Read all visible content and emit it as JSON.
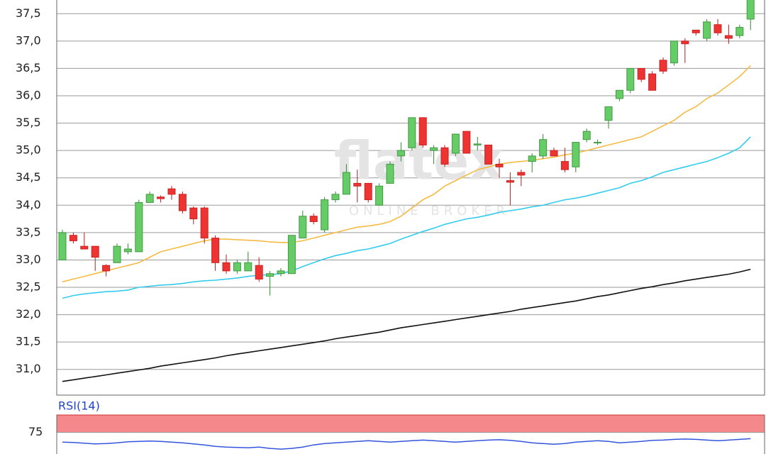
{
  "chart_data": {
    "type": "candlestick",
    "watermark": "flatex",
    "watermark_sub": "ONLINE BROKER",
    "ylim": [
      30.53,
      37.75
    ],
    "yticks": [
      {
        "value": 31,
        "label": "31,0"
      },
      {
        "value": 31.5,
        "label": "31,5"
      },
      {
        "value": 32,
        "label": "32,0"
      },
      {
        "value": 32.5,
        "label": "32,5"
      },
      {
        "value": 33,
        "label": "33,0"
      },
      {
        "value": 33.5,
        "label": "33,5"
      },
      {
        "value": 34,
        "label": "34,0"
      },
      {
        "value": 34.5,
        "label": "34,5"
      },
      {
        "value": 35,
        "label": "35,0"
      },
      {
        "value": 35.5,
        "label": "35,5"
      },
      {
        "value": 36,
        "label": "36,0"
      },
      {
        "value": 36.5,
        "label": "36,5"
      },
      {
        "value": 37,
        "label": "37,0"
      },
      {
        "value": 37.5,
        "label": "37,5"
      }
    ],
    "grid": true,
    "up_color": "#66cc66",
    "down_color": "#ee3333",
    "open": [
      33.0,
      33.45,
      33.25,
      33.25,
      32.9,
      32.95,
      33.15,
      33.15,
      34.05,
      34.15,
      34.3,
      34.2,
      33.95,
      33.95,
      33.4,
      32.95,
      32.8,
      32.8,
      32.9,
      32.7,
      32.75,
      32.75,
      33.4,
      33.8,
      33.55,
      34.1,
      34.2,
      34.4,
      34.4,
      34.0,
      34.4,
      34.9,
      35.05,
      35.6,
      35.0,
      35.05,
      34.95,
      35.35,
      35.1,
      35.1,
      34.75,
      34.45,
      34.6,
      34.8,
      34.9,
      35.0,
      34.8,
      34.7,
      35.2,
      35.15,
      35.55,
      35.95,
      36.1,
      36.5,
      36.4,
      36.65,
      36.6,
      37.0,
      37.2,
      37.05,
      37.3,
      37.1,
      37.1,
      37.4
    ],
    "high": [
      33.55,
      33.5,
      33.5,
      33.25,
      32.92,
      33.3,
      33.3,
      34.1,
      34.25,
      34.18,
      34.35,
      34.25,
      33.98,
      33.98,
      33.45,
      33.1,
      33.0,
      33.15,
      33.05,
      32.8,
      32.85,
      33.45,
      33.9,
      33.85,
      34.15,
      34.25,
      34.75,
      34.65,
      34.4,
      34.4,
      34.8,
      35.15,
      35.6,
      35.6,
      35.1,
      35.1,
      35.3,
      35.35,
      35.25,
      35.1,
      34.85,
      34.6,
      34.65,
      34.95,
      35.3,
      35.05,
      35.05,
      35.15,
      35.4,
      35.2,
      35.8,
      36.1,
      36.5,
      36.5,
      36.45,
      36.7,
      37.0,
      37.05,
      37.2,
      37.4,
      37.4,
      37.3,
      37.3,
      37.8
    ],
    "low": [
      33.0,
      33.3,
      33.2,
      32.8,
      32.7,
      32.95,
      33.1,
      33.15,
      34.05,
      34.05,
      34.1,
      33.85,
      33.65,
      33.3,
      32.8,
      32.75,
      32.75,
      32.8,
      32.6,
      32.35,
      32.7,
      32.75,
      33.4,
      33.65,
      33.5,
      34.05,
      34.2,
      34.05,
      34.05,
      34.0,
      34.4,
      34.8,
      35.0,
      35.05,
      34.75,
      34.7,
      34.9,
      34.95,
      35.0,
      34.75,
      34.5,
      34.0,
      34.35,
      34.6,
      34.85,
      34.9,
      34.6,
      34.6,
      35.15,
      35.1,
      35.4,
      35.9,
      36.05,
      36.25,
      36.1,
      36.4,
      36.55,
      36.6,
      37.1,
      37.0,
      37.1,
      36.95,
      37.05,
      37.2
    ],
    "close": [
      33.5,
      33.35,
      33.2,
      33.05,
      32.8,
      33.25,
      33.2,
      34.05,
      34.2,
      34.12,
      34.2,
      33.9,
      33.75,
      33.4,
      32.95,
      32.8,
      32.95,
      32.95,
      32.65,
      32.75,
      32.8,
      33.45,
      33.8,
      33.7,
      34.1,
      34.2,
      34.6,
      34.35,
      34.1,
      34.35,
      34.75,
      35.0,
      35.6,
      35.1,
      35.05,
      34.75,
      35.3,
      34.95,
      35.12,
      34.75,
      34.7,
      34.42,
      34.55,
      34.9,
      35.2,
      34.9,
      34.65,
      35.15,
      35.35,
      35.15,
      35.8,
      36.1,
      36.5,
      36.3,
      36.1,
      36.45,
      37.0,
      36.95,
      37.15,
      37.35,
      37.15,
      37.05,
      37.25,
      37.8
    ],
    "series": [
      {
        "color": "#f5bb44",
        "values": [
          32.6,
          32.65,
          32.7,
          32.75,
          32.8,
          32.85,
          32.9,
          32.95,
          33.05,
          33.15,
          33.2,
          33.25,
          33.3,
          33.35,
          33.38,
          33.38,
          33.37,
          33.36,
          33.35,
          33.33,
          33.32,
          33.32,
          33.35,
          33.4,
          33.45,
          33.5,
          33.55,
          33.6,
          33.62,
          33.65,
          33.7,
          33.8,
          33.95,
          34.1,
          34.2,
          34.35,
          34.45,
          34.55,
          34.65,
          34.7,
          34.75,
          34.78,
          34.8,
          34.82,
          34.85,
          34.88,
          34.92,
          34.95,
          35.0,
          35.05,
          35.1,
          35.15,
          35.2,
          35.25,
          35.35,
          35.45,
          35.55,
          35.7,
          35.8,
          35.95,
          36.05,
          36.2,
          36.35,
          36.55
        ]
      },
      {
        "color": "#33ccee",
        "values": [
          32.3,
          32.35,
          32.38,
          32.4,
          32.42,
          32.43,
          32.45,
          32.5,
          32.52,
          32.54,
          32.55,
          32.57,
          32.6,
          32.62,
          32.63,
          32.65,
          32.67,
          32.7,
          32.72,
          32.73,
          32.75,
          32.8,
          32.88,
          32.95,
          33.02,
          33.08,
          33.12,
          33.17,
          33.2,
          33.25,
          33.3,
          33.38,
          33.45,
          33.52,
          33.58,
          33.65,
          33.7,
          33.75,
          33.78,
          33.82,
          33.87,
          33.9,
          33.93,
          33.97,
          34.0,
          34.05,
          34.1,
          34.13,
          34.17,
          34.22,
          34.27,
          34.32,
          34.4,
          34.45,
          34.52,
          34.6,
          34.65,
          34.7,
          34.75,
          34.8,
          34.87,
          34.95,
          35.05,
          35.25
        ]
      },
      {
        "color": "#111111",
        "values": [
          30.78,
          30.81,
          30.84,
          30.87,
          30.9,
          30.93,
          30.96,
          30.99,
          31.02,
          31.06,
          31.09,
          31.12,
          31.15,
          31.18,
          31.21,
          31.25,
          31.28,
          31.31,
          31.34,
          31.37,
          31.4,
          31.43,
          31.46,
          31.49,
          31.52,
          31.56,
          31.59,
          31.62,
          31.65,
          31.68,
          31.72,
          31.76,
          31.79,
          31.82,
          31.85,
          31.88,
          31.91,
          31.94,
          31.97,
          32.0,
          32.03,
          32.06,
          32.1,
          32.13,
          32.16,
          32.19,
          32.22,
          32.25,
          32.29,
          32.33,
          32.36,
          32.4,
          32.44,
          32.48,
          32.51,
          32.55,
          32.58,
          32.62,
          32.65,
          32.68,
          32.71,
          32.74,
          32.78,
          32.83
        ]
      }
    ],
    "indicator": {
      "title": "RSI(14)",
      "color": "#3355dd",
      "ylim": [
        44,
        100
      ],
      "yticks": [
        75
      ],
      "band": [
        75,
        100
      ],
      "band_color": "#f4888a",
      "values": [
        61,
        60.5,
        59.5,
        58.5,
        59,
        60,
        61.5,
        62,
        62.5,
        62,
        61,
        60,
        58.5,
        57,
        55,
        54,
        53.5,
        53,
        54,
        52,
        51,
        52,
        54,
        57,
        59,
        60,
        61,
        62,
        63,
        62,
        61,
        62,
        63,
        64,
        63,
        62,
        61,
        62,
        63,
        64,
        64.5,
        63.5,
        62,
        60,
        59,
        58,
        59,
        61,
        62,
        63,
        62,
        60,
        61,
        62,
        63.5,
        64,
        65,
        65.5,
        65,
        64,
        63,
        64,
        65,
        66
      ]
    }
  }
}
